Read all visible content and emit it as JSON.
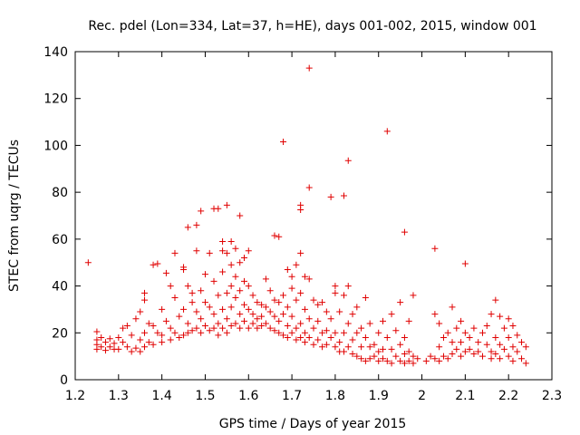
{
  "chart_data": {
    "type": "scatter",
    "title": "Rec. pdel (Lon=334, Lat=37, h=HE), days 001-002, 2015, window 001",
    "xlabel": "GPS time / Days of year 2015",
    "ylabel": "STEC from uqrg / TECUs",
    "xlim": [
      1.2,
      2.3
    ],
    "ylim": [
      0,
      140
    ],
    "xticks": [
      "1.2",
      "1.3",
      "1.4",
      "1.5",
      "1.6",
      "1.7",
      "1.8",
      "1.9",
      "2",
      "2.1",
      "2.2",
      "2.3"
    ],
    "xtick_values": [
      1.2,
      1.3,
      1.4,
      1.5,
      1.6,
      1.7,
      1.8,
      1.9,
      2.0,
      2.1,
      2.2,
      2.3
    ],
    "yticks": [
      "0",
      "20",
      "40",
      "60",
      "80",
      "100",
      "120",
      "140"
    ],
    "ytick_values": [
      0,
      20,
      40,
      60,
      80,
      100,
      120,
      140
    ],
    "grid": false,
    "marker": "+",
    "color": "#e00000",
    "series": [
      {
        "name": "STEC",
        "points": [
          [
            1.25,
            20.5
          ],
          [
            1.25,
            17
          ],
          [
            1.25,
            15
          ],
          [
            1.25,
            13
          ],
          [
            1.26,
            18
          ],
          [
            1.26,
            14
          ],
          [
            1.27,
            16
          ],
          [
            1.27,
            12.5
          ],
          [
            1.28,
            17.5
          ],
          [
            1.28,
            14
          ],
          [
            1.29,
            15.5
          ],
          [
            1.29,
            13
          ],
          [
            1.3,
            18
          ],
          [
            1.3,
            13
          ],
          [
            1.31,
            22
          ],
          [
            1.31,
            16
          ],
          [
            1.32,
            23
          ],
          [
            1.32,
            14
          ],
          [
            1.33,
            19
          ],
          [
            1.33,
            12
          ],
          [
            1.34,
            26
          ],
          [
            1.34,
            13.5
          ],
          [
            1.35,
            29
          ],
          [
            1.35,
            17
          ],
          [
            1.35,
            12
          ],
          [
            1.36,
            37
          ],
          [
            1.36,
            34
          ],
          [
            1.36,
            20
          ],
          [
            1.36,
            14
          ],
          [
            1.37,
            24
          ],
          [
            1.37,
            16
          ],
          [
            1.38,
            49
          ],
          [
            1.38,
            23
          ],
          [
            1.38,
            15
          ],
          [
            1.39,
            49.5
          ],
          [
            1.39,
            20
          ],
          [
            1.4,
            30
          ],
          [
            1.4,
            19
          ],
          [
            1.4,
            16
          ],
          [
            1.41,
            45.5
          ],
          [
            1.41,
            25
          ],
          [
            1.42,
            40
          ],
          [
            1.42,
            22
          ],
          [
            1.42,
            17
          ],
          [
            1.43,
            54
          ],
          [
            1.43,
            35
          ],
          [
            1.43,
            20
          ],
          [
            1.44,
            27
          ],
          [
            1.44,
            18
          ],
          [
            1.45,
            48
          ],
          [
            1.45,
            47
          ],
          [
            1.45,
            30
          ],
          [
            1.45,
            19
          ],
          [
            1.46,
            65
          ],
          [
            1.46,
            40
          ],
          [
            1.46,
            24
          ],
          [
            1.46,
            20
          ],
          [
            1.47,
            37
          ],
          [
            1.47,
            33
          ],
          [
            1.47,
            21
          ],
          [
            1.48,
            66
          ],
          [
            1.48,
            55
          ],
          [
            1.48,
            29
          ],
          [
            1.48,
            22
          ],
          [
            1.49,
            72
          ],
          [
            1.49,
            38
          ],
          [
            1.49,
            26
          ],
          [
            1.49,
            20
          ],
          [
            1.5,
            45
          ],
          [
            1.5,
            33
          ],
          [
            1.5,
            23
          ],
          [
            1.51,
            54
          ],
          [
            1.51,
            31
          ],
          [
            1.51,
            21
          ],
          [
            1.52,
            73
          ],
          [
            1.52,
            42
          ],
          [
            1.52,
            28
          ],
          [
            1.52,
            22
          ],
          [
            1.53,
            73
          ],
          [
            1.53,
            36
          ],
          [
            1.53,
            24
          ],
          [
            1.53,
            19
          ],
          [
            1.54,
            59
          ],
          [
            1.54,
            55
          ],
          [
            1.54,
            46
          ],
          [
            1.54,
            30
          ],
          [
            1.54,
            22
          ],
          [
            1.55,
            74.5
          ],
          [
            1.55,
            54
          ],
          [
            1.55,
            37
          ],
          [
            1.55,
            26
          ],
          [
            1.55,
            20
          ],
          [
            1.56,
            59
          ],
          [
            1.56,
            49
          ],
          [
            1.56,
            40
          ],
          [
            1.56,
            31
          ],
          [
            1.56,
            23
          ],
          [
            1.57,
            56
          ],
          [
            1.57,
            44
          ],
          [
            1.57,
            35
          ],
          [
            1.57,
            24
          ],
          [
            1.58,
            70
          ],
          [
            1.58,
            50
          ],
          [
            1.58,
            38
          ],
          [
            1.58,
            28
          ],
          [
            1.58,
            22
          ],
          [
            1.59,
            52
          ],
          [
            1.59,
            42
          ],
          [
            1.59,
            32
          ],
          [
            1.59,
            25
          ],
          [
            1.6,
            55
          ],
          [
            1.6,
            40
          ],
          [
            1.6,
            30
          ],
          [
            1.6,
            22
          ],
          [
            1.61,
            36
          ],
          [
            1.61,
            28
          ],
          [
            1.61,
            24
          ],
          [
            1.62,
            33
          ],
          [
            1.62,
            26
          ],
          [
            1.62,
            22
          ],
          [
            1.63,
            32
          ],
          [
            1.63,
            27
          ],
          [
            1.63,
            23
          ],
          [
            1.64,
            43
          ],
          [
            1.64,
            31
          ],
          [
            1.64,
            24
          ],
          [
            1.65,
            38
          ],
          [
            1.65,
            29
          ],
          [
            1.65,
            22
          ],
          [
            1.66,
            61.5
          ],
          [
            1.66,
            34
          ],
          [
            1.66,
            27
          ],
          [
            1.66,
            21
          ],
          [
            1.67,
            61
          ],
          [
            1.67,
            33
          ],
          [
            1.67,
            25
          ],
          [
            1.67,
            20
          ],
          [
            1.68,
            101.5
          ],
          [
            1.68,
            36
          ],
          [
            1.68,
            28
          ],
          [
            1.68,
            19
          ],
          [
            1.69,
            47
          ],
          [
            1.69,
            31
          ],
          [
            1.69,
            23
          ],
          [
            1.69,
            18
          ],
          [
            1.7,
            44
          ],
          [
            1.7,
            39
          ],
          [
            1.7,
            27
          ],
          [
            1.7,
            20
          ],
          [
            1.71,
            49
          ],
          [
            1.71,
            34
          ],
          [
            1.71,
            22
          ],
          [
            1.71,
            17
          ],
          [
            1.72,
            74.5
          ],
          [
            1.72,
            72.5
          ],
          [
            1.72,
            54
          ],
          [
            1.72,
            37
          ],
          [
            1.72,
            24
          ],
          [
            1.72,
            18
          ],
          [
            1.73,
            44
          ],
          [
            1.73,
            30
          ],
          [
            1.73,
            20
          ],
          [
            1.73,
            16
          ],
          [
            1.74,
            133
          ],
          [
            1.74,
            82
          ],
          [
            1.74,
            43
          ],
          [
            1.74,
            26
          ],
          [
            1.74,
            18
          ],
          [
            1.75,
            34
          ],
          [
            1.75,
            22
          ],
          [
            1.75,
            15
          ],
          [
            1.76,
            32
          ],
          [
            1.76,
            25
          ],
          [
            1.76,
            17
          ],
          [
            1.77,
            33
          ],
          [
            1.77,
            20
          ],
          [
            1.77,
            14
          ],
          [
            1.78,
            29
          ],
          [
            1.78,
            21
          ],
          [
            1.78,
            15
          ],
          [
            1.79,
            78
          ],
          [
            1.79,
            26
          ],
          [
            1.79,
            18
          ],
          [
            1.8,
            40
          ],
          [
            1.8,
            37
          ],
          [
            1.8,
            20
          ],
          [
            1.8,
            14
          ],
          [
            1.81,
            29
          ],
          [
            1.81,
            16
          ],
          [
            1.81,
            12
          ],
          [
            1.82,
            78.5
          ],
          [
            1.82,
            36
          ],
          [
            1.82,
            20
          ],
          [
            1.82,
            12
          ],
          [
            1.83,
            40
          ],
          [
            1.83,
            24
          ],
          [
            1.83,
            14
          ],
          [
            1.83,
            93.5
          ],
          [
            1.84,
            28
          ],
          [
            1.84,
            17
          ],
          [
            1.84,
            11
          ],
          [
            1.85,
            31
          ],
          [
            1.85,
            20
          ],
          [
            1.85,
            10
          ],
          [
            1.86,
            22
          ],
          [
            1.86,
            14
          ],
          [
            1.86,
            9
          ],
          [
            1.87,
            35
          ],
          [
            1.87,
            18
          ],
          [
            1.87,
            8
          ],
          [
            1.88,
            24
          ],
          [
            1.88,
            14
          ],
          [
            1.88,
            9
          ],
          [
            1.89,
            15
          ],
          [
            1.89,
            10
          ],
          [
            1.9,
            20
          ],
          [
            1.9,
            12
          ],
          [
            1.9,
            8
          ],
          [
            1.91,
            25
          ],
          [
            1.91,
            13
          ],
          [
            1.91,
            9
          ],
          [
            1.92,
            106
          ],
          [
            1.92,
            18
          ],
          [
            1.92,
            8
          ],
          [
            1.93,
            28
          ],
          [
            1.93,
            13
          ],
          [
            1.93,
            7
          ],
          [
            1.94,
            21
          ],
          [
            1.94,
            10
          ],
          [
            1.95,
            33
          ],
          [
            1.95,
            15
          ],
          [
            1.95,
            8
          ],
          [
            1.96,
            63
          ],
          [
            1.96,
            18
          ],
          [
            1.96,
            11
          ],
          [
            1.96,
            7
          ],
          [
            1.97,
            25
          ],
          [
            1.97,
            12
          ],
          [
            1.97,
            8
          ],
          [
            1.98,
            36
          ],
          [
            1.98,
            10
          ],
          [
            1.98,
            7
          ],
          [
            2.03,
            56
          ],
          [
            2.03,
            28
          ],
          [
            2.03,
            9
          ],
          [
            2.04,
            24
          ],
          [
            2.04,
            14
          ],
          [
            2.04,
            8
          ],
          [
            2.05,
            18
          ],
          [
            2.05,
            10
          ],
          [
            2.06,
            20
          ],
          [
            2.06,
            9
          ],
          [
            2.07,
            31
          ],
          [
            2.07,
            16
          ],
          [
            2.07,
            11
          ],
          [
            2.08,
            22
          ],
          [
            2.08,
            13
          ],
          [
            2.09,
            25
          ],
          [
            2.09,
            16
          ],
          [
            2.09,
            10
          ],
          [
            2.1,
            49.5
          ],
          [
            2.1,
            20
          ],
          [
            2.1,
            12
          ],
          [
            2.11,
            18
          ],
          [
            2.11,
            13
          ],
          [
            2.12,
            22
          ],
          [
            2.12,
            11
          ],
          [
            2.13,
            16
          ],
          [
            2.13,
            12
          ],
          [
            2.14,
            20
          ],
          [
            2.14,
            10
          ],
          [
            2.15,
            23
          ],
          [
            2.15,
            15
          ],
          [
            2.16,
            28
          ],
          [
            2.16,
            12
          ],
          [
            2.16,
            9
          ],
          [
            2.17,
            34
          ],
          [
            2.17,
            18
          ],
          [
            2.17,
            11
          ],
          [
            2.18,
            27
          ],
          [
            2.18,
            15
          ],
          [
            2.18,
            9
          ],
          [
            2.19,
            22
          ],
          [
            2.19,
            13
          ],
          [
            2.2,
            26
          ],
          [
            2.2,
            18
          ],
          [
            2.2,
            10
          ],
          [
            2.21,
            23
          ],
          [
            2.21,
            14
          ],
          [
            2.21,
            8
          ],
          [
            2.22,
            19
          ],
          [
            2.22,
            12
          ],
          [
            2.23,
            16
          ],
          [
            2.23,
            9
          ],
          [
            2.24,
            14
          ],
          [
            2.24,
            7
          ],
          [
            1.23,
            50
          ],
          [
            1.99,
            9
          ],
          [
            2.01,
            8
          ],
          [
            2.02,
            10
          ]
        ]
      }
    ]
  }
}
